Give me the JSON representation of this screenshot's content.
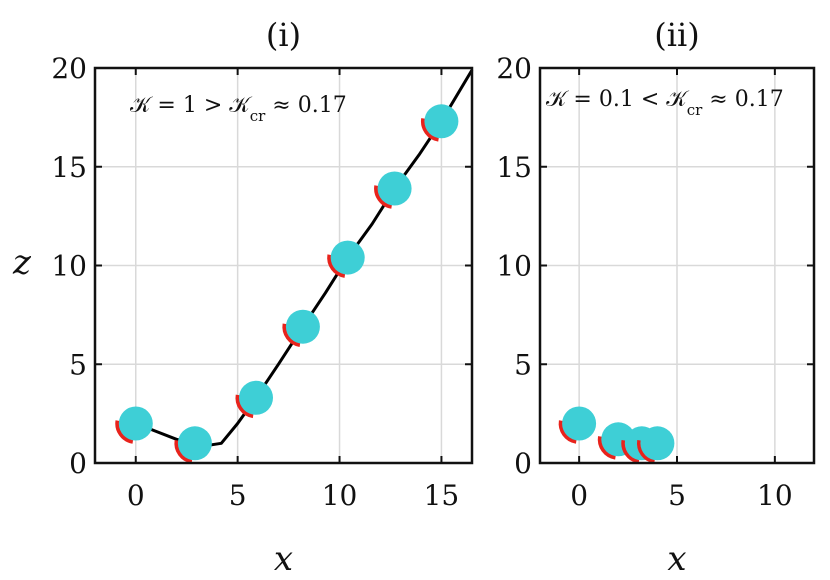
{
  "figure": {
    "panels": [
      {
        "title": "(i)",
        "annotation": "ℒ = 1 > ℒ_cr ≈ 0.17",
        "annotation_main": "𝒦 = 1 > 𝒦",
        "annotation_sub": "cr",
        "annotation_tail": " ≈ 0.17",
        "xlabel": "x",
        "ylabel": "z"
      },
      {
        "title": "(ii)",
        "annotation_main": "𝒦 = 0.1 < 𝒦",
        "annotation_sub": "cr",
        "annotation_tail": " ≈ 0.17",
        "xlabel": "x",
        "ylabel": ""
      }
    ]
  },
  "colors": {
    "particle": "#3ecfd6",
    "contact_arc": "#e8231c",
    "trajectory": "#000000"
  },
  "chart_data": [
    {
      "type": "scatter",
      "title": "(i)",
      "xlabel": "x",
      "ylabel": "z",
      "xlim": [
        -2,
        16.5
      ],
      "ylim": [
        0,
        20
      ],
      "xticks": [
        0,
        5,
        10,
        15
      ],
      "yticks": [
        0,
        5,
        10,
        15,
        20
      ],
      "grid": true,
      "annotation": "K = 1 > K_cr ≈ 0.17",
      "trajectory": {
        "x": [
          0,
          1,
          2,
          2.9,
          3.6,
          4.2,
          5,
          5.9,
          7,
          8.2,
          9.3,
          10.4,
          11.6,
          12.7,
          13.9,
          15,
          16.5
        ],
        "y": [
          2,
          1.6,
          1.2,
          1.0,
          0.9,
          1.0,
          2.0,
          3.3,
          5.0,
          6.9,
          8.6,
          10.4,
          12.1,
          13.9,
          15.6,
          17.3,
          19.9
        ]
      },
      "particles": {
        "x": [
          0,
          2.9,
          5.9,
          8.2,
          10.4,
          12.7,
          15
        ],
        "y": [
          2,
          1.0,
          3.3,
          6.9,
          10.4,
          13.9,
          17.3
        ]
      }
    },
    {
      "type": "scatter",
      "title": "(ii)",
      "xlabel": "x",
      "ylabel": "",
      "xlim": [
        -2,
        12
      ],
      "ylim": [
        0,
        20
      ],
      "xticks": [
        0,
        5,
        10
      ],
      "yticks": [
        0,
        5,
        10,
        15,
        20
      ],
      "grid": true,
      "annotation": "K = 0.1 < K_cr ≈ 0.17",
      "trajectory": {
        "x": [],
        "y": []
      },
      "particles": {
        "x": [
          0,
          2,
          3.2,
          4
        ],
        "y": [
          2,
          1.2,
          1.0,
          1.0
        ]
      }
    }
  ]
}
